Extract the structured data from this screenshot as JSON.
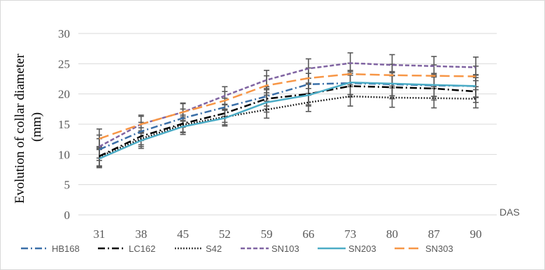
{
  "chart_data": {
    "type": "line",
    "title": "",
    "ylabel": "Evolution of collar diameter (mm)",
    "xlabel": "DAS",
    "x": [
      "31",
      "38",
      "45",
      "52",
      "59",
      "66",
      "73",
      "80",
      "87",
      "90"
    ],
    "ylim": [
      0,
      30
    ],
    "yticks": [
      0,
      5,
      10,
      15,
      20,
      25,
      30
    ],
    "grid": "horizontal",
    "legend_position": "bottom",
    "error_bar_color": "#595959",
    "series": [
      {
        "name": "HB168",
        "color": "#3a6fa8",
        "dash": "dashdot",
        "values": [
          10.8,
          13.8,
          16.0,
          17.8,
          19.6,
          21.6,
          21.8,
          21.6,
          21.4,
          21.3
        ],
        "error": [
          1.8,
          1.5,
          1.5,
          1.5,
          1.6,
          1.8,
          1.9,
          1.9,
          1.8,
          1.8
        ]
      },
      {
        "name": "LC162",
        "color": "#000000",
        "dash": "dashdot",
        "values": [
          9.7,
          13.0,
          15.1,
          16.8,
          19.2,
          20.0,
          21.3,
          21.1,
          20.9,
          20.4
        ],
        "error": [
          1.6,
          1.4,
          1.4,
          1.5,
          1.7,
          1.8,
          1.8,
          1.9,
          1.9,
          1.8
        ]
      },
      {
        "name": "S42",
        "color": "#000000",
        "dash": "dotted",
        "values": [
          9.6,
          12.6,
          14.9,
          16.2,
          17.4,
          18.6,
          19.6,
          19.4,
          19.3,
          19.2
        ],
        "error": [
          1.6,
          1.3,
          1.3,
          1.3,
          1.4,
          1.5,
          1.6,
          1.6,
          1.6,
          1.5
        ]
      },
      {
        "name": "SN103",
        "color": "#8064a2",
        "dash": "dashed",
        "values": [
          11.3,
          15.0,
          17.0,
          19.7,
          22.3,
          24.2,
          25.1,
          24.8,
          24.6,
          24.4
        ],
        "error": [
          1.9,
          1.5,
          1.5,
          1.5,
          1.6,
          1.6,
          1.7,
          1.7,
          1.6,
          1.7
        ]
      },
      {
        "name": "SN203",
        "color": "#4bacc6",
        "dash": "solid",
        "values": [
          9.3,
          12.3,
          14.6,
          16.0,
          18.6,
          19.8,
          21.9,
          21.7,
          21.5,
          21.3
        ],
        "error": [
          1.5,
          1.3,
          1.3,
          1.3,
          1.6,
          1.8,
          2.0,
          2.0,
          1.9,
          1.9
        ]
      },
      {
        "name": "SN303",
        "color": "#f79646",
        "dash": "longdash",
        "values": [
          12.6,
          15.0,
          17.0,
          18.9,
          21.4,
          22.6,
          23.3,
          23.1,
          23.0,
          22.9
        ],
        "error": [
          1.6,
          1.3,
          1.4,
          1.5,
          1.6,
          1.7,
          1.8,
          1.8,
          1.8,
          1.7
        ]
      }
    ]
  }
}
